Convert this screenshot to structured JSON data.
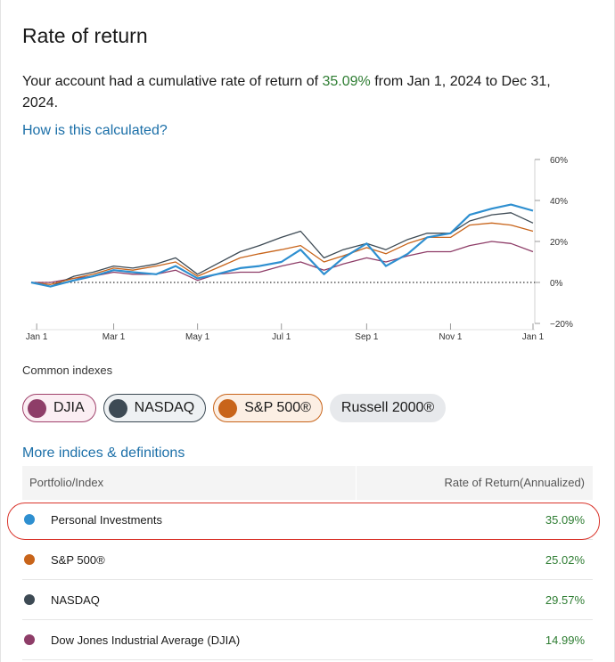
{
  "title": "Rate of return",
  "summary": {
    "before": "Your account had a cumulative rate of return of ",
    "rate": "35.09%",
    "after": " from Jan 1, 2024 to Dec 31, 2024."
  },
  "how_link": "How is this calculated?",
  "common_label": "Common indexes",
  "chips": [
    {
      "label": "DJIA",
      "color": "#8e3d68"
    },
    {
      "label": "NASDAQ",
      "color": "#3d4a54"
    },
    {
      "label": "S&P 500®",
      "color": "#c8641a"
    },
    {
      "label": "Russell 2000®",
      "color": null
    }
  ],
  "more_link": "More indices & definitions",
  "table": {
    "headers": [
      "Portfolio/Index",
      "Rate of Return(Annualized)"
    ],
    "rows": [
      {
        "name": "Personal Investments",
        "value": "35.09%",
        "color": "#2e8fd0",
        "highlighted": true
      },
      {
        "name": "S&P 500®",
        "value": "25.02%",
        "color": "#c8641a",
        "highlighted": false
      },
      {
        "name": "NASDAQ",
        "value": "29.57%",
        "color": "#3d4a54",
        "highlighted": false
      },
      {
        "name": "Dow Jones Industrial Average (DJIA)",
        "value": "14.99%",
        "color": "#8e3d68",
        "highlighted": false
      }
    ]
  },
  "chart_data": {
    "type": "line",
    "x_ticks": [
      "Jan 1",
      "Mar 1",
      "May 1",
      "Jul 1",
      "Sep 1",
      "Nov 1",
      "Jan 1"
    ],
    "y_ticks": [
      "60%",
      "40%",
      "20%",
      "0%",
      "−20%"
    ],
    "ylim": [
      -20,
      60
    ],
    "baseline": 0,
    "x": [
      "2024-01-01",
      "2024-01-15",
      "2024-02-01",
      "2024-02-15",
      "2024-03-01",
      "2024-03-15",
      "2024-04-01",
      "2024-04-15",
      "2024-05-01",
      "2024-05-15",
      "2024-06-01",
      "2024-06-15",
      "2024-07-01",
      "2024-07-15",
      "2024-08-01",
      "2024-08-15",
      "2024-09-01",
      "2024-09-15",
      "2024-10-01",
      "2024-10-15",
      "2024-11-01",
      "2024-11-15",
      "2024-12-01",
      "2024-12-15",
      "2024-12-31"
    ],
    "series": [
      {
        "name": "Personal Investments",
        "color": "#2e8fd0",
        "values": [
          0,
          -2,
          1,
          3,
          6,
          5,
          4,
          8,
          2,
          4,
          7,
          8,
          10,
          16,
          4,
          12,
          19,
          8,
          14,
          22,
          24,
          33,
          36,
          38,
          35
        ]
      },
      {
        "name": "S&P 500®",
        "color": "#c8641a",
        "values": [
          0,
          -1,
          2,
          4,
          7,
          6,
          8,
          10,
          3,
          7,
          12,
          14,
          16,
          18,
          10,
          13,
          17,
          14,
          19,
          22,
          22,
          28,
          29,
          28,
          25
        ]
      },
      {
        "name": "NASDAQ",
        "color": "#3d4a54",
        "values": [
          0,
          -2,
          3,
          5,
          8,
          7,
          9,
          12,
          4,
          9,
          15,
          18,
          22,
          25,
          12,
          16,
          19,
          16,
          21,
          24,
          24,
          30,
          33,
          34,
          29
        ]
      },
      {
        "name": "Dow Jones Industrial Average (DJIA)",
        "color": "#8e3d68",
        "values": [
          0,
          0,
          2,
          3,
          5,
          4,
          4,
          6,
          1,
          4,
          5,
          5,
          8,
          10,
          6,
          9,
          12,
          10,
          13,
          15,
          15,
          18,
          20,
          19,
          15
        ]
      }
    ]
  }
}
